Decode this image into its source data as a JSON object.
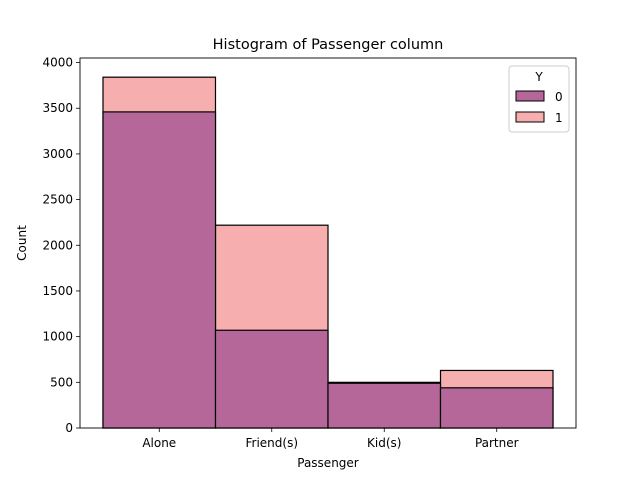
{
  "chart_data": {
    "type": "bar",
    "title": "Histogram of Passenger column",
    "xlabel": "Passenger",
    "ylabel": "Count",
    "categories": [
      "Alone",
      "Friend(s)",
      "Kid(s)",
      "Partner"
    ],
    "ylim": [
      0,
      4050
    ],
    "yticks": [
      0,
      500,
      1000,
      1500,
      2000,
      2500,
      3000,
      3500,
      4000
    ],
    "legend": {
      "title": "Y",
      "placement": "top-right"
    },
    "series": [
      {
        "name": "0",
        "color": "#b5679a",
        "values": [
          3460,
          1070,
          490,
          440
        ]
      },
      {
        "name": "1",
        "color": "#f6aeae",
        "values": [
          3840,
          2220,
          500,
          630
        ]
      }
    ]
  }
}
